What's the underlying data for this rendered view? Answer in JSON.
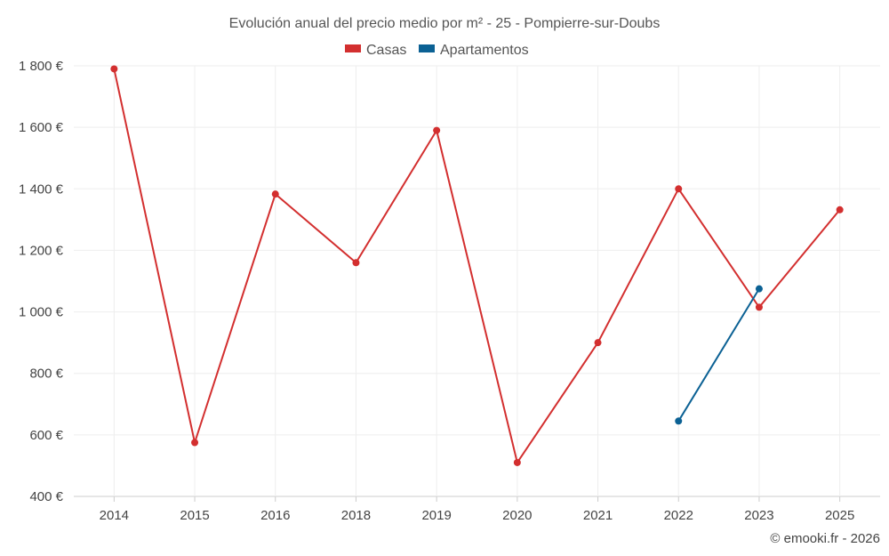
{
  "chart_data": {
    "type": "line",
    "title": "Evolución anual del precio medio por m² - 25 - Pompierre-sur-Doubs",
    "categories": [
      "2014",
      "2015",
      "2016",
      "2018",
      "2019",
      "2020",
      "2021",
      "2022",
      "2023",
      "2025"
    ],
    "series": [
      {
        "name": "Casas",
        "color": "#d32f2f",
        "values": [
          1790,
          575,
          1383,
          1160,
          1590,
          510,
          900,
          1400,
          1015,
          1332
        ]
      },
      {
        "name": "Apartamentos",
        "color": "#0b6194",
        "values": [
          null,
          null,
          null,
          null,
          null,
          null,
          null,
          645,
          1075,
          null
        ]
      }
    ],
    "ylim": [
      400,
      1800
    ],
    "yticks": [
      400,
      600,
      800,
      1000,
      1200,
      1400,
      1600,
      1800
    ],
    "ytick_labels": [
      "400 €",
      "600 €",
      "800 €",
      "1 000 €",
      "1 200 €",
      "1 400 €",
      "1 600 €",
      "1 800 €"
    ],
    "grid": true,
    "legend_position": "top-center"
  },
  "footer": "© emooki.fr - 2026"
}
